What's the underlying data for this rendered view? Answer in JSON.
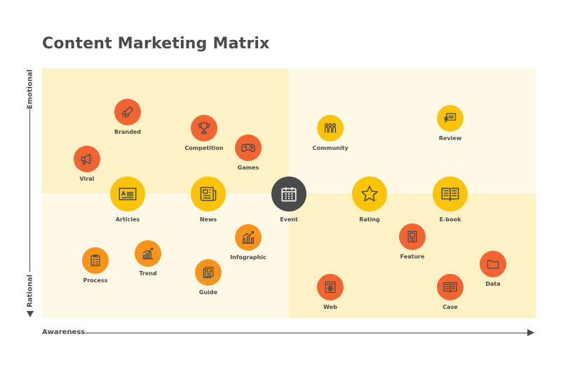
{
  "title": "Content Marketing Matrix",
  "axes": {
    "y_top": "Emotional",
    "y_bottom": "Rational",
    "x": "Awareness"
  },
  "colors": {
    "red": "#f26532",
    "orange": "#f7941d",
    "yellow": "#fcc30b",
    "dark": "#4a4a4a"
  },
  "items": {
    "branded": {
      "label": "Branded",
      "icon": "rocket-icon"
    },
    "viral": {
      "label": "Viral",
      "icon": "megaphone-icon"
    },
    "competition": {
      "label": "Competition",
      "icon": "trophy-icon"
    },
    "games": {
      "label": "Games",
      "icon": "gamepad-icon"
    },
    "community": {
      "label": "Community",
      "icon": "people-icon"
    },
    "review": {
      "label": "Review",
      "icon": "review-icon"
    },
    "articles": {
      "label": "Articles",
      "icon": "article-icon"
    },
    "news": {
      "label": "News",
      "icon": "newspaper-icon"
    },
    "event": {
      "label": "Event",
      "icon": "calendar-icon"
    },
    "rating": {
      "label": "Rating",
      "icon": "star-icon"
    },
    "ebook": {
      "label": "E-book",
      "icon": "book-icon"
    },
    "infographic": {
      "label": "Infographic",
      "icon": "chart-icon"
    },
    "feature": {
      "label": "Feature",
      "icon": "feature-icon"
    },
    "process": {
      "label": "Process",
      "icon": "checklist-icon"
    },
    "trend": {
      "label": "Trend",
      "icon": "trend-icon"
    },
    "guide": {
      "label": "Guide",
      "icon": "guide-icon"
    },
    "data": {
      "label": "Data",
      "icon": "folder-icon"
    },
    "web": {
      "label": "Web",
      "icon": "web-icon"
    },
    "case": {
      "label": "Case",
      "icon": "book-icon"
    }
  }
}
